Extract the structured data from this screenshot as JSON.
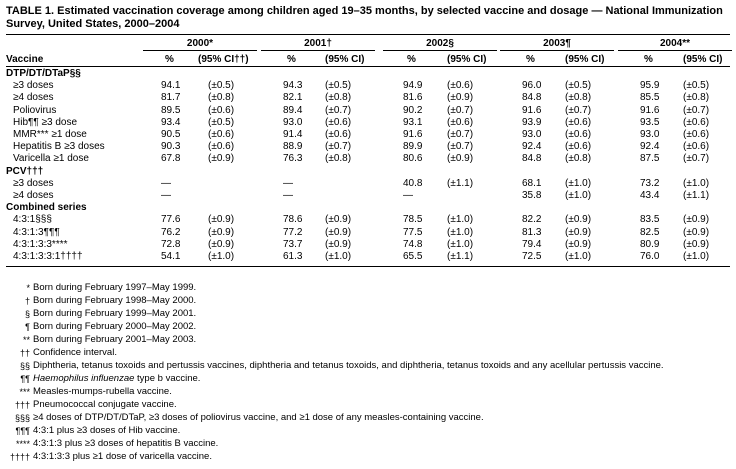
{
  "title": "TABLE 1. Estimated vaccination coverage among children aged 19–35 months, by selected vaccine and dosage — National Immunization Survey, United States, 2000–2004",
  "table": {
    "year_headers": [
      "2000*",
      "2001†",
      "2002§",
      "2003¶",
      "2004**"
    ],
    "column_headers": [
      "Vaccine",
      "%",
      "(95% CI††)",
      "%",
      "(95% CI)",
      "%",
      "(95% CI)",
      "%",
      "(95% CI)",
      "%",
      "(95% CI)"
    ],
    "sections": [
      {
        "heading": "DTP/DT/DTaP§§",
        "rows": [
          {
            "label": "≥3 doses",
            "cells": [
              "94.1",
              "(±0.5)",
              "94.3",
              "(±0.5)",
              "94.9",
              "(±0.6)",
              "96.0",
              "(±0.5)",
              "95.9",
              "(±0.5)"
            ]
          },
          {
            "label": "≥4 doses",
            "cells": [
              "81.7",
              "(±0.8)",
              "82.1",
              "(±0.8)",
              "81.6",
              "(±0.9)",
              "84.8",
              "(±0.8)",
              "85.5",
              "(±0.8)"
            ]
          },
          {
            "label": "Poliovirus",
            "cells": [
              "89.5",
              "(±0.6)",
              "89.4",
              "(±0.7)",
              "90.2",
              "(±0.7)",
              "91.6",
              "(±0.7)",
              "91.6",
              "(±0.7)"
            ]
          },
          {
            "label": "Hib¶¶ ≥3 dose",
            "cells": [
              "93.4",
              "(±0.5)",
              "93.0",
              "(±0.6)",
              "93.1",
              "(±0.6)",
              "93.9",
              "(±0.6)",
              "93.5",
              "(±0.6)"
            ]
          },
          {
            "label": "MMR*** ≥1 dose",
            "cells": [
              "90.5",
              "(±0.6)",
              "91.4",
              "(±0.6)",
              "91.6",
              "(±0.7)",
              "93.0",
              "(±0.6)",
              "93.0",
              "(±0.6)"
            ]
          },
          {
            "label": "Hepatitis B ≥3 doses",
            "cells": [
              "90.3",
              "(±0.6)",
              "88.9",
              "(±0.7)",
              "89.9",
              "(±0.7)",
              "92.4",
              "(±0.6)",
              "92.4",
              "(±0.6)"
            ]
          },
          {
            "label": "Varicella ≥1 dose",
            "cells": [
              "67.8",
              "(±0.9)",
              "76.3",
              "(±0.8)",
              "80.6",
              "(±0.9)",
              "84.8",
              "(±0.8)",
              "87.5",
              "(±0.7)"
            ]
          }
        ]
      },
      {
        "heading": "PCV†††",
        "rows": [
          {
            "label": "≥3 doses",
            "cells": [
              "—",
              null,
              "—",
              null,
              "40.8",
              "(±1.1)",
              "68.1",
              "(±1.0)",
              "73.2",
              "(±1.0)"
            ]
          },
          {
            "label": "≥4 doses",
            "cells": [
              "—",
              null,
              "—",
              null,
              "—",
              null,
              "35.8",
              "(±1.0)",
              "43.4",
              "(±1.1)"
            ]
          }
        ]
      },
      {
        "heading": "Combined series",
        "rows": [
          {
            "label": "4:3:1§§§",
            "cells": [
              "77.6",
              "(±0.9)",
              "78.6",
              "(±0.9)",
              "78.5",
              "(±1.0)",
              "82.2",
              "(±0.9)",
              "83.5",
              "(±0.9)"
            ]
          },
          {
            "label": "4:3:1:3¶¶¶",
            "cells": [
              "76.2",
              "(±0.9)",
              "77.2",
              "(±0.9)",
              "77.5",
              "(±1.0)",
              "81.3",
              "(±0.9)",
              "82.5",
              "(±0.9)"
            ]
          },
          {
            "label": "4:3:1:3:3****",
            "cells": [
              "72.8",
              "(±0.9)",
              "73.7",
              "(±0.9)",
              "74.8",
              "(±1.0)",
              "79.4",
              "(±0.9)",
              "80.9",
              "(±0.9)"
            ]
          },
          {
            "label": "4:3:1:3:3:1††††",
            "cells": [
              "54.1",
              "(±1.0)",
              "61.3",
              "(±1.0)",
              "65.5",
              "(±1.1)",
              "72.5",
              "(±1.0)",
              "76.0",
              "(±1.0)"
            ]
          }
        ]
      }
    ]
  },
  "footnotes": [
    {
      "mark": "*",
      "text": "Born during February 1997–May 1999."
    },
    {
      "mark": "†",
      "text": "Born during February 1998–May 2000."
    },
    {
      "mark": "§",
      "text": "Born during February 1999–May 2001."
    },
    {
      "mark": "¶",
      "text": "Born during February 2000–May 2002."
    },
    {
      "mark": "**",
      "text": "Born during February 2001–May 2003."
    },
    {
      "mark": "††",
      "text": "Confidence interval."
    },
    {
      "mark": "§§",
      "text": "Diphtheria, tetanus toxoids and pertussis vaccines, diphtheria and tetanus toxoids, and diphtheria, tetanus toxoids and any acellular pertussis vaccine."
    },
    {
      "mark": "¶¶",
      "italic": "Haemophilus influenzae",
      "text": "type b vaccine."
    },
    {
      "mark": "***",
      "text": "Measles-mumps-rubella vaccine."
    },
    {
      "mark": "†††",
      "text": "Pneumococcal conjugate vaccine."
    },
    {
      "mark": "§§§",
      "text": "≥4 doses of DTP/DT/DTaP, ≥3 doses of poliovirus vaccine, and ≥1 dose of any measles-containing vaccine."
    },
    {
      "mark": "¶¶¶",
      "text": "4:3:1 plus ≥3 doses of Hib vaccine."
    },
    {
      "mark": "****",
      "text": "4:3:1:3 plus ≥3 doses of hepatitis B vaccine."
    },
    {
      "mark": "††††",
      "text": "4:3:1:3:3 plus ≥1 dose of varicella vaccine."
    }
  ]
}
